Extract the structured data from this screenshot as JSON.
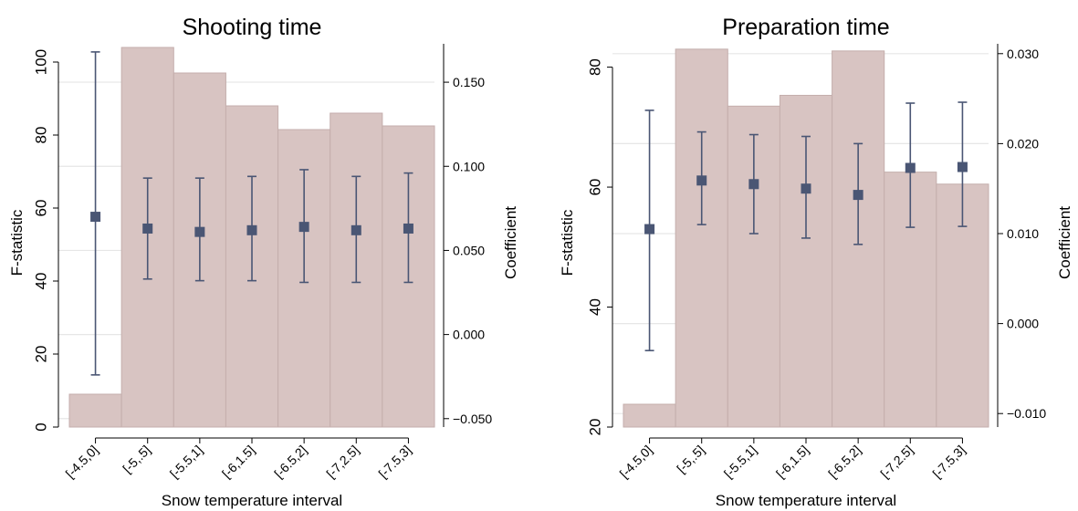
{
  "chart_data": [
    {
      "type": "bar",
      "title": "Shooting time",
      "xlabel": "Snow temperature interval",
      "ylabel": "F-statistic",
      "y2label": "Coefficient",
      "categories": [
        "[-4.5,0]",
        "[-5,.5]",
        "[-5.5,1]",
        "[-6,1.5]",
        "[-6.5,2]",
        "[-7,2.5]",
        "[-7.5,3]"
      ],
      "ylim": [
        0,
        106
      ],
      "y_ticks": [
        0,
        20,
        40,
        60,
        80,
        100
      ],
      "y_tick_labels": [
        "0",
        "20",
        "40",
        "60",
        "80",
        "100"
      ],
      "y2lim": [
        -0.055,
        0.175
      ],
      "y2_ticks": [
        -0.05,
        0.0,
        0.05,
        0.1,
        0.15
      ],
      "y2_tick_labels": [
        "−0.050",
        "0.000",
        "0.050",
        "0.100",
        "0.150"
      ],
      "grid": true,
      "series": [
        {
          "name": "F-statistic",
          "type": "bar",
          "axis": "left",
          "values": [
            9,
            104,
            97,
            88,
            81.5,
            86,
            82.5
          ]
        },
        {
          "name": "Coefficient",
          "type": "point-errorbar",
          "axis": "right",
          "values": [
            0.07,
            0.063,
            0.061,
            0.062,
            0.064,
            0.062,
            0.063
          ],
          "ci_low": [
            -0.024,
            0.033,
            0.032,
            0.032,
            0.031,
            0.031,
            0.031
          ],
          "ci_high": [
            0.168,
            0.093,
            0.093,
            0.094,
            0.098,
            0.094,
            0.096
          ]
        }
      ]
    },
    {
      "type": "bar",
      "title": "Preparation time",
      "xlabel": "Snow temperature interval",
      "ylabel": "F-statistic",
      "y2label": "Coefficient",
      "categories": [
        "[-4.5,0]",
        "[-5,.5]",
        "[-5.5,1]",
        "[-6,1.5]",
        "[-6.5,2]",
        "[-7,2.5]",
        "[-7.5,3]"
      ],
      "ylim": [
        20,
        84.5
      ],
      "y_ticks": [
        20,
        40,
        60,
        80
      ],
      "y_tick_labels": [
        "20",
        "40",
        "60",
        "80"
      ],
      "y2lim": [
        -0.0115,
        0.0315
      ],
      "y2_ticks": [
        -0.01,
        0.0,
        0.01,
        0.02,
        0.03
      ],
      "y2_tick_labels": [
        "−0.010",
        "0.000",
        "0.010",
        "0.020",
        "0.030"
      ],
      "grid": true,
      "series": [
        {
          "name": "F-statistic",
          "type": "bar",
          "axis": "left",
          "values": [
            23.8,
            83,
            73.5,
            75.3,
            82.7,
            62.5,
            60.5
          ]
        },
        {
          "name": "Coefficient",
          "type": "point-errorbar",
          "axis": "right",
          "values": [
            0.0105,
            0.0159,
            0.0155,
            0.015,
            0.0143,
            0.0173,
            0.0174
          ],
          "ci_low": [
            -0.003,
            0.011,
            0.01,
            0.0095,
            0.0088,
            0.0107,
            0.0108
          ],
          "ci_high": [
            0.0237,
            0.0213,
            0.021,
            0.0208,
            0.02,
            0.0245,
            0.0246
          ]
        }
      ]
    }
  ]
}
